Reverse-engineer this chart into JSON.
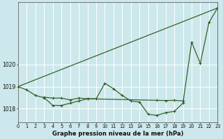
{
  "title": "Graphe pression niveau de la mer (hPa)",
  "bg_color": "#cce8ec",
  "grid_color": "#ffffff",
  "line_color": "#2d5a1b",
  "xlim": [
    0,
    23
  ],
  "ylim": [
    1017.4,
    1022.8
  ],
  "yticks": [
    1018,
    1019,
    1020
  ],
  "xticks": [
    0,
    1,
    2,
    3,
    4,
    5,
    6,
    7,
    8,
    9,
    10,
    11,
    12,
    13,
    14,
    15,
    16,
    17,
    18,
    19,
    20,
    21,
    22,
    23
  ],
  "series_detailed": [
    1019.0,
    1018.85,
    1018.6,
    1018.5,
    1018.15,
    1018.15,
    1018.25,
    1018.35,
    1018.45,
    1018.45,
    1019.15,
    1018.9,
    1018.6,
    1018.35,
    1018.3,
    1017.75,
    1017.7,
    1017.82,
    1017.88,
    1018.25,
    1021.0,
    1020.05,
    1021.9,
    1022.55
  ],
  "series_trend": [
    [
      0,
      1019.0
    ],
    [
      23,
      1022.55
    ]
  ],
  "series_flat": [
    [
      3,
      1018.52
    ],
    [
      4,
      1018.48
    ],
    [
      5,
      1018.48
    ],
    [
      6,
      1018.4
    ],
    [
      7,
      1018.48
    ],
    [
      8,
      1018.45
    ],
    [
      16,
      1018.38
    ],
    [
      17,
      1018.37
    ],
    [
      18,
      1018.38
    ],
    [
      19,
      1018.35
    ]
  ]
}
